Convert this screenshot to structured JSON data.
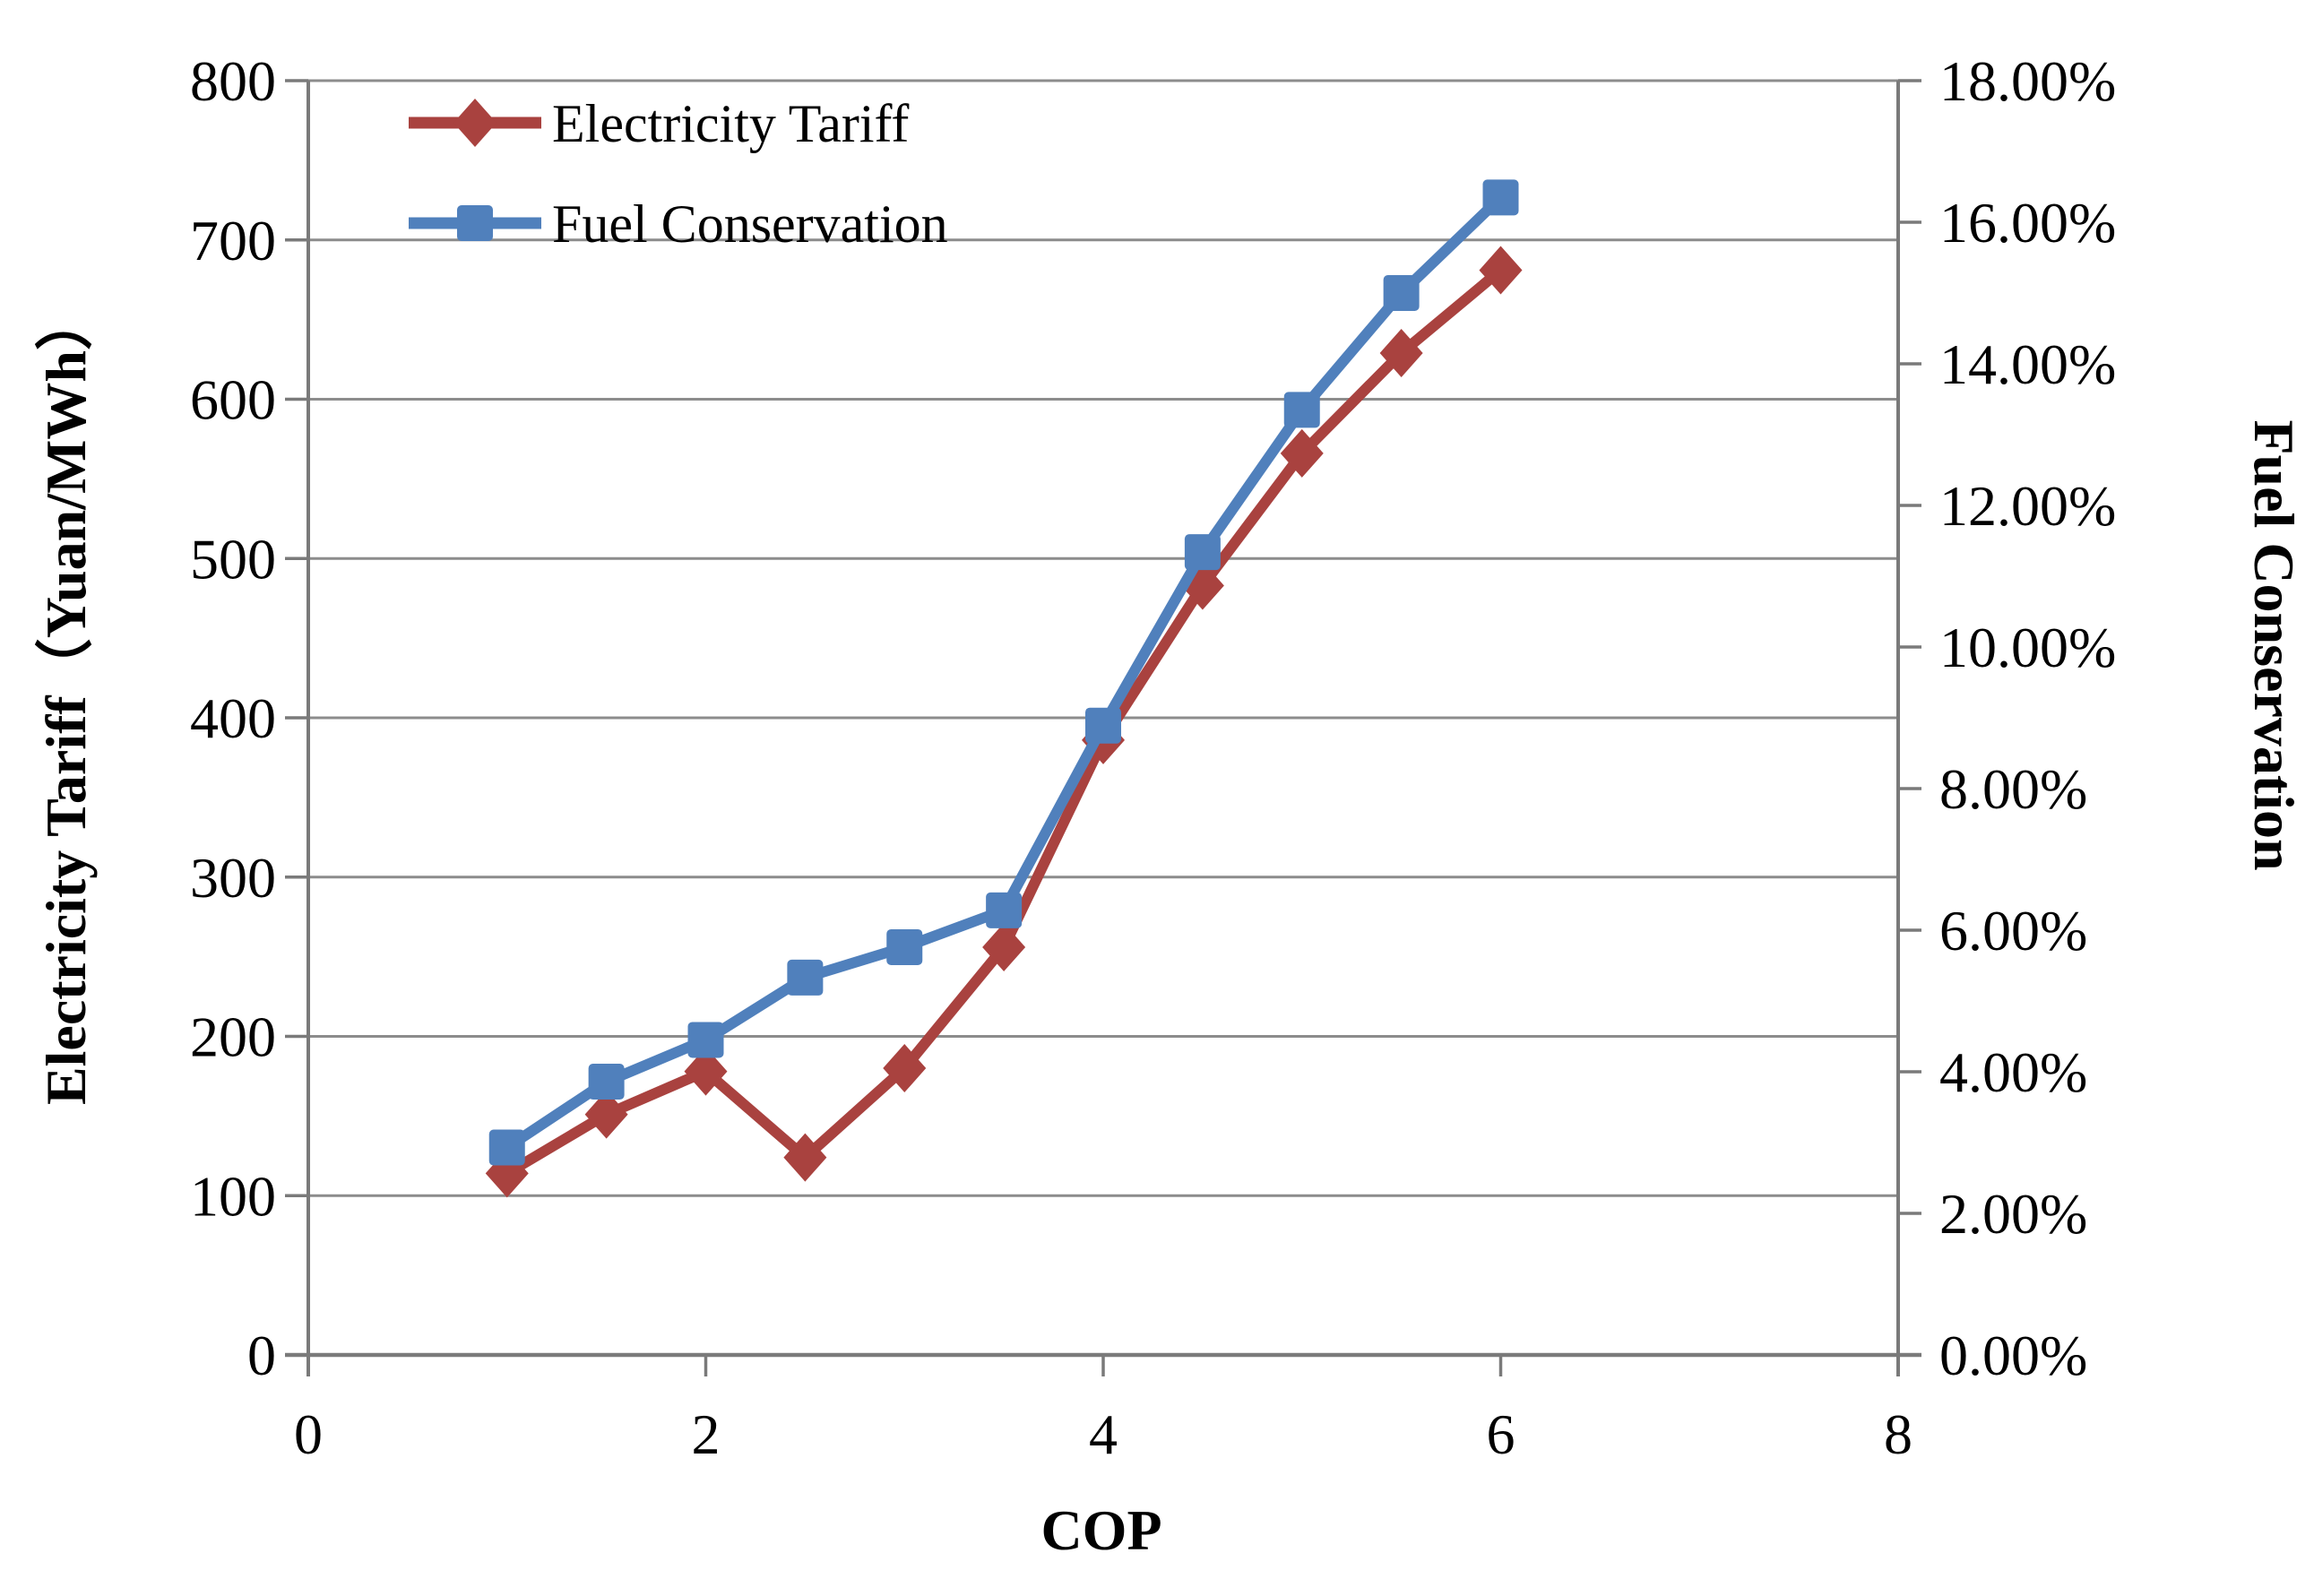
{
  "figure": {
    "background": "#FFFFFF",
    "text_color": "#000000",
    "gridline_color": "#8C8C8C",
    "axis_line_color": "#7A7A7A"
  },
  "legend": {
    "position": "top-left-inside",
    "items": [
      {
        "label": "Electricity Tariff",
        "marker": "diamond",
        "color": "#A9423F"
      },
      {
        "label": "Fuel Conservation",
        "marker": "square",
        "color": "#5080BC"
      }
    ]
  },
  "chart_data": {
    "type": "line",
    "title": "",
    "x": [
      1,
      1.5,
      2,
      2.5,
      3,
      3.5,
      4,
      4.5,
      5,
      5.5,
      6
    ],
    "series": [
      {
        "name": "Electricity Tariff",
        "axis": "left",
        "marker": "diamond",
        "color": "#A9423F",
        "values": [
          114,
          151,
          178,
          124,
          180,
          256,
          386,
          483,
          566,
          629,
          681
        ]
      },
      {
        "name": "Fuel Conservation",
        "axis": "right",
        "marker": "square",
        "color": "#5080BC",
        "values": [
          2.93,
          3.86,
          4.45,
          5.33,
          5.76,
          6.28,
          8.89,
          11.34,
          13.35,
          15.0,
          16.35
        ]
      }
    ],
    "x_axis": {
      "label": "COP",
      "min": 0,
      "max": 8,
      "tick_step": 2,
      "tick_labels": [
        "0",
        "2",
        "4",
        "6",
        "8"
      ]
    },
    "left_axis": {
      "label": "Electricity Tariff（Yuan/MWh）",
      "min": 0,
      "max": 800,
      "tick_step": 100,
      "tick_labels": [
        "0",
        "100",
        "200",
        "300",
        "400",
        "500",
        "600",
        "700",
        "800"
      ]
    },
    "right_axis": {
      "label": "Fuel Conservation",
      "min": 0,
      "max": 18,
      "tick_step": 2,
      "tick_labels": [
        "0.00%",
        "2.00%",
        "4.00%",
        "6.00%",
        "8.00%",
        "10.00%",
        "12.00%",
        "14.00%",
        "16.00%",
        "18.00%"
      ]
    },
    "grid": {
      "horizontal": true,
      "vertical": false
    },
    "legend_position": "top-left-inside"
  }
}
